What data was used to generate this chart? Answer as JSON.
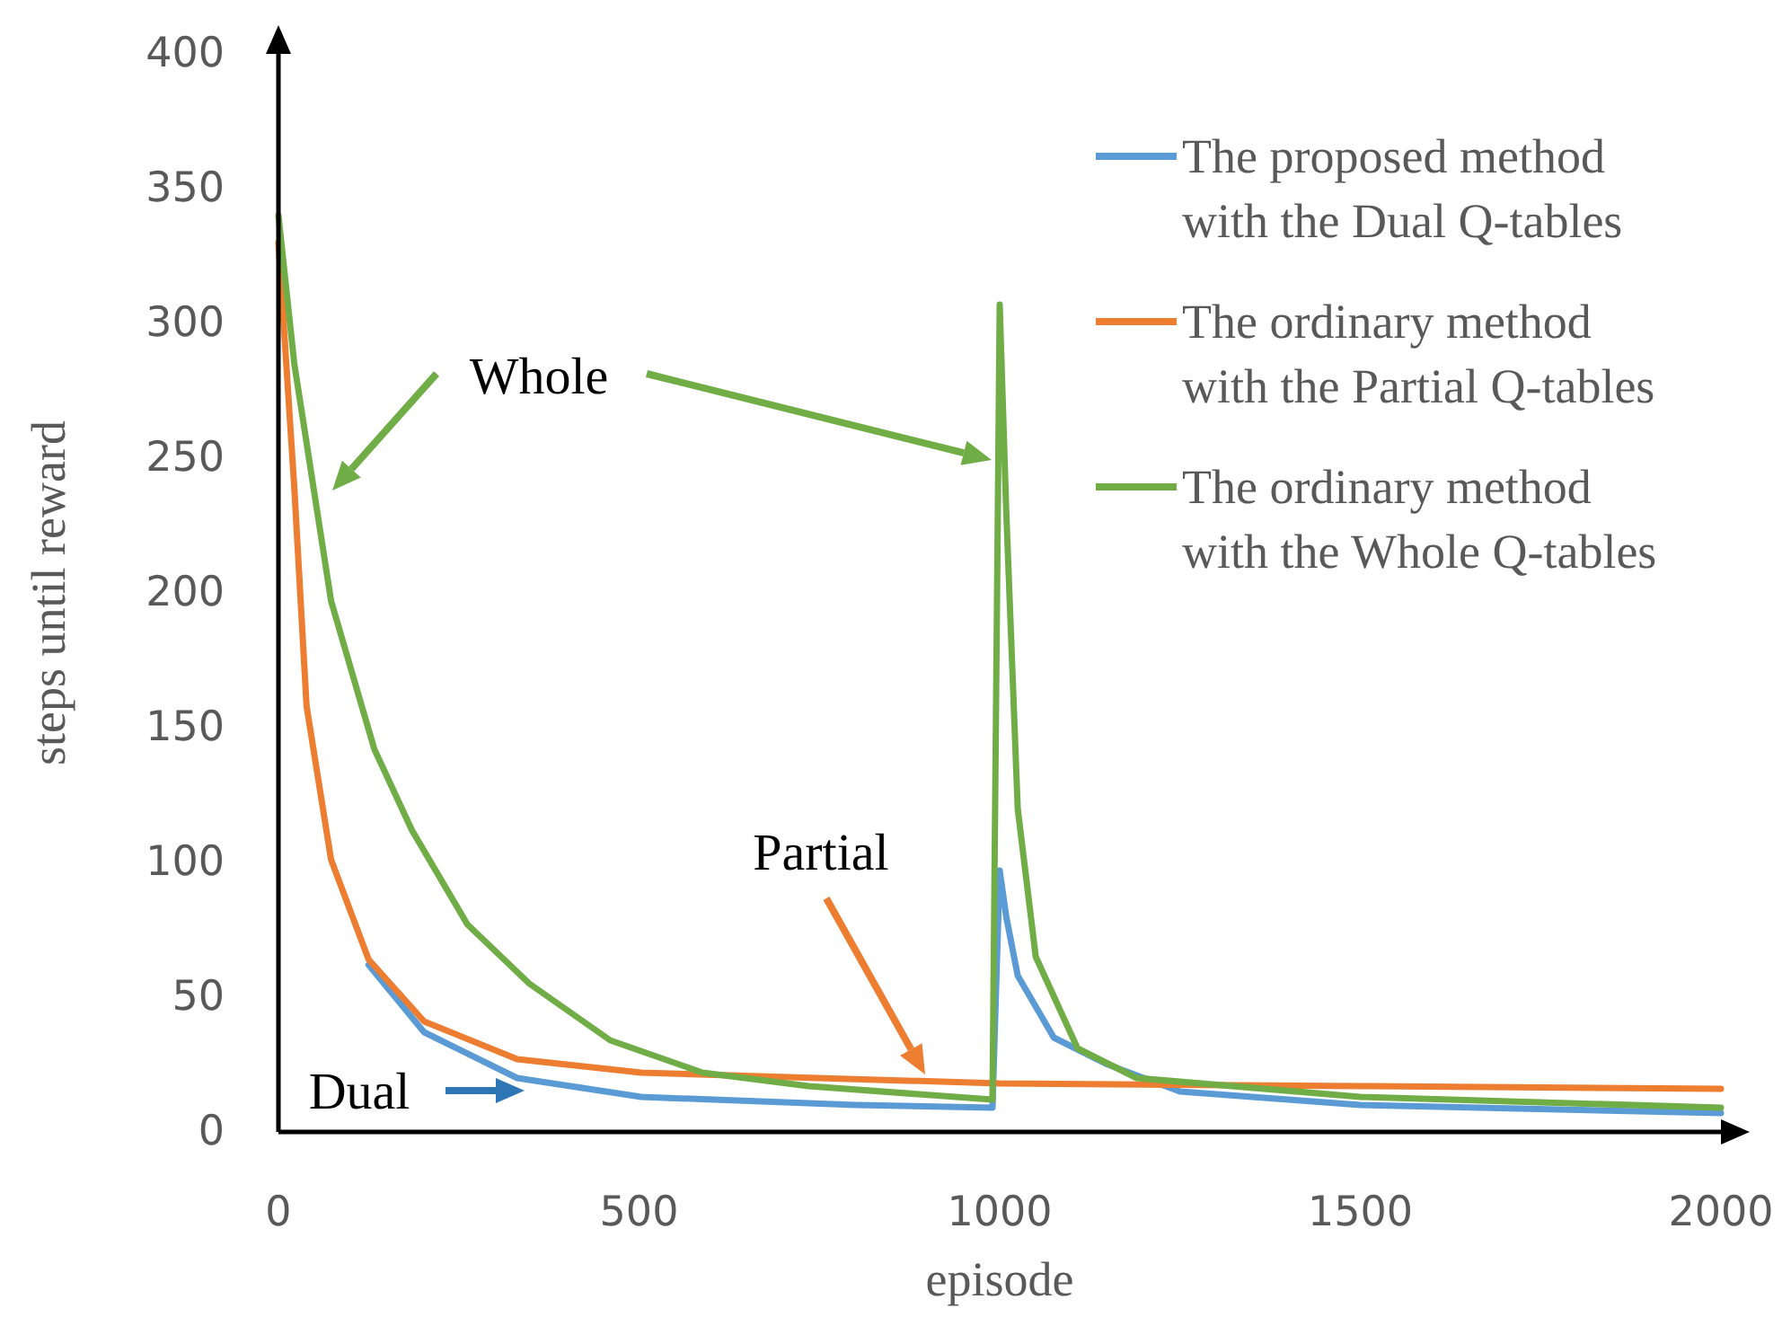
{
  "chart_data": {
    "type": "line",
    "xlabel": "episode",
    "ylabel": "steps until reward",
    "xlim": [
      0,
      2000
    ],
    "xticks": [
      0,
      500,
      1000,
      1500,
      2000
    ],
    "ylim": [
      0,
      400
    ],
    "yticks": [
      0,
      50,
      100,
      150,
      200,
      250,
      300,
      350,
      400
    ],
    "grid": false,
    "legend": "top right",
    "marker": "none",
    "line_style": "solid",
    "series": [
      {
        "name": "The proposed method with the Dual Q-tables",
        "color": "#5b9bd5",
        "x": [
          125,
          202,
          331,
          503,
          800,
          990,
          1000,
          1009,
          1025,
          1075,
          1150,
          1250,
          1500,
          2000
        ],
        "values": [
          62,
          37,
          20,
          13,
          10,
          9,
          97,
          80,
          58,
          35,
          25,
          15,
          10,
          7
        ]
      },
      {
        "name": "The ordinary method with the Partial Q-tables",
        "color": "#ed7d31",
        "x": [
          0,
          22,
          39,
          73,
          125,
          202,
          331,
          503,
          1000,
          1500,
          2000
        ],
        "values": [
          330,
          239,
          158,
          101,
          64,
          41,
          27,
          22,
          18,
          17,
          16
        ]
      },
      {
        "name": "The ordinary method with the Whole Q-tables",
        "color": "#70ad47",
        "x": [
          0,
          22,
          73,
          133,
          185,
          262,
          348,
          460,
          588,
          735,
          990,
          1000,
          1009,
          1025,
          1050,
          1108,
          1190,
          1500,
          2000
        ],
        "values": [
          340,
          285,
          197,
          142,
          112,
          77,
          55,
          34,
          22,
          17,
          12,
          307,
          231,
          120,
          65,
          31,
          20,
          13,
          9
        ]
      }
    ],
    "annotations": [
      "Whole",
      "Partial",
      "Dual"
    ]
  }
}
